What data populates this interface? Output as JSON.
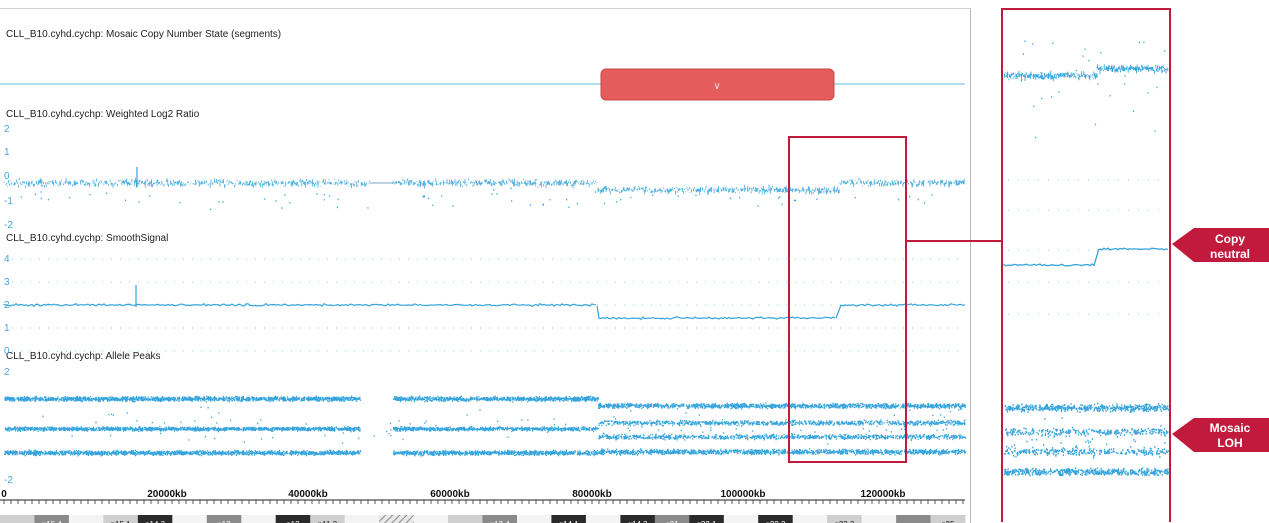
{
  "tracks": {
    "segments": {
      "title": "CLL_B10.cyhd.cychp: Mosaic Copy Number State (segments)",
      "segment_label": "∨"
    },
    "log2": {
      "title": "CLL_B10.cyhd.cychp: Weighted Log2 Ratio",
      "ticks": [
        "2",
        "1",
        "0",
        "-1",
        "-2"
      ]
    },
    "smooth": {
      "title": "CLL_B10.cyhd.cychp: SmoothSignal",
      "ticks": [
        "4",
        "3",
        "2",
        "1",
        "0"
      ]
    },
    "allele": {
      "title": "CLL_B10.cyhd.cychp: Allele Peaks",
      "ticks": [
        "2",
        "-2"
      ]
    }
  },
  "x_axis": {
    "labels": [
      "0",
      "20000kb",
      "40000kb",
      "60000kb",
      "80000kb",
      "100000kb",
      "120000kb"
    ]
  },
  "ideogram": {
    "bands": [
      {
        "label": "",
        "shade": "light"
      },
      {
        "label": "p15.4",
        "shade": "grey"
      },
      {
        "label": "",
        "shade": "white"
      },
      {
        "label": "p15.1",
        "shade": "light"
      },
      {
        "label": "p14.3",
        "shade": "dark"
      },
      {
        "label": "",
        "shade": "white"
      },
      {
        "label": "p13",
        "shade": "grey"
      },
      {
        "label": "",
        "shade": "white"
      },
      {
        "label": "p12",
        "shade": "dark"
      },
      {
        "label": "p11.2",
        "shade": "light"
      },
      {
        "label": "",
        "shade": "white"
      },
      {
        "label": "",
        "shade": "hatch"
      },
      {
        "label": "",
        "shade": "white"
      },
      {
        "label": "",
        "shade": "light"
      },
      {
        "label": "q13.4",
        "shade": "grey"
      },
      {
        "label": "",
        "shade": "white"
      },
      {
        "label": "q14.1",
        "shade": "dark"
      },
      {
        "label": "",
        "shade": "white"
      },
      {
        "label": "q14.3",
        "shade": "dark"
      },
      {
        "label": "q21",
        "shade": "grey"
      },
      {
        "label": "q22.1",
        "shade": "dark"
      },
      {
        "label": "",
        "shade": "white"
      },
      {
        "label": "q22.3",
        "shade": "dark"
      },
      {
        "label": "",
        "shade": "white"
      },
      {
        "label": "q23.3",
        "shade": "light"
      },
      {
        "label": "",
        "shade": "white"
      },
      {
        "label": "",
        "shade": "grey"
      },
      {
        "label": "q25",
        "shade": "light"
      }
    ]
  },
  "callouts": {
    "copy_neutral": [
      "Copy",
      "neutral"
    ],
    "mosaic_loh": [
      "Mosaic",
      "LOH"
    ]
  },
  "colors": {
    "signal": "#35a4dd",
    "segment": "#e65c5c",
    "highlight": "#c21a3c",
    "callout": "#c21a3c"
  }
}
